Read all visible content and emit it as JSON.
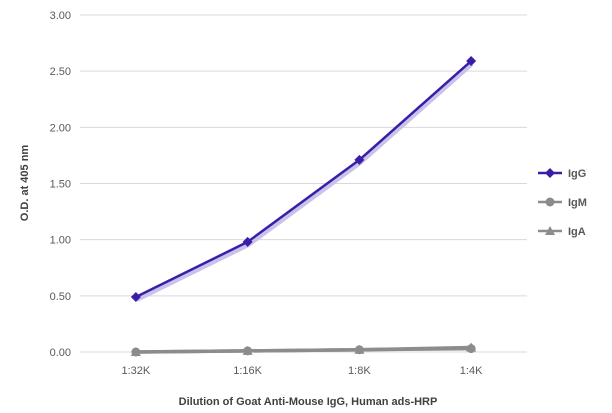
{
  "chart_data": {
    "type": "line",
    "xlabel": "Dilution of Goat Anti-Mouse IgG, Human ads-HRP",
    "ylabel": "O.D. at 405 nm",
    "categories": [
      "1:32K",
      "1:16K",
      "1:8K",
      "1:4K"
    ],
    "ylim": [
      0,
      3.0
    ],
    "yticks": [
      "0.00",
      "0.50",
      "1.00",
      "1.50",
      "2.00",
      "2.50",
      "3.00"
    ],
    "grid": true,
    "legend": "right",
    "series": [
      {
        "name": "IgG",
        "values": [
          0.49,
          0.98,
          1.71,
          2.59
        ],
        "color": "#3b1ea8",
        "marker": "diamond"
      },
      {
        "name": "IgM",
        "values": [
          0.0,
          0.01,
          0.02,
          0.03
        ],
        "color": "#8c8c8c",
        "marker": "circle"
      },
      {
        "name": "IgA",
        "values": [
          0.0,
          0.01,
          0.02,
          0.04
        ],
        "color": "#8c8c8c",
        "marker": "triangle"
      }
    ]
  }
}
